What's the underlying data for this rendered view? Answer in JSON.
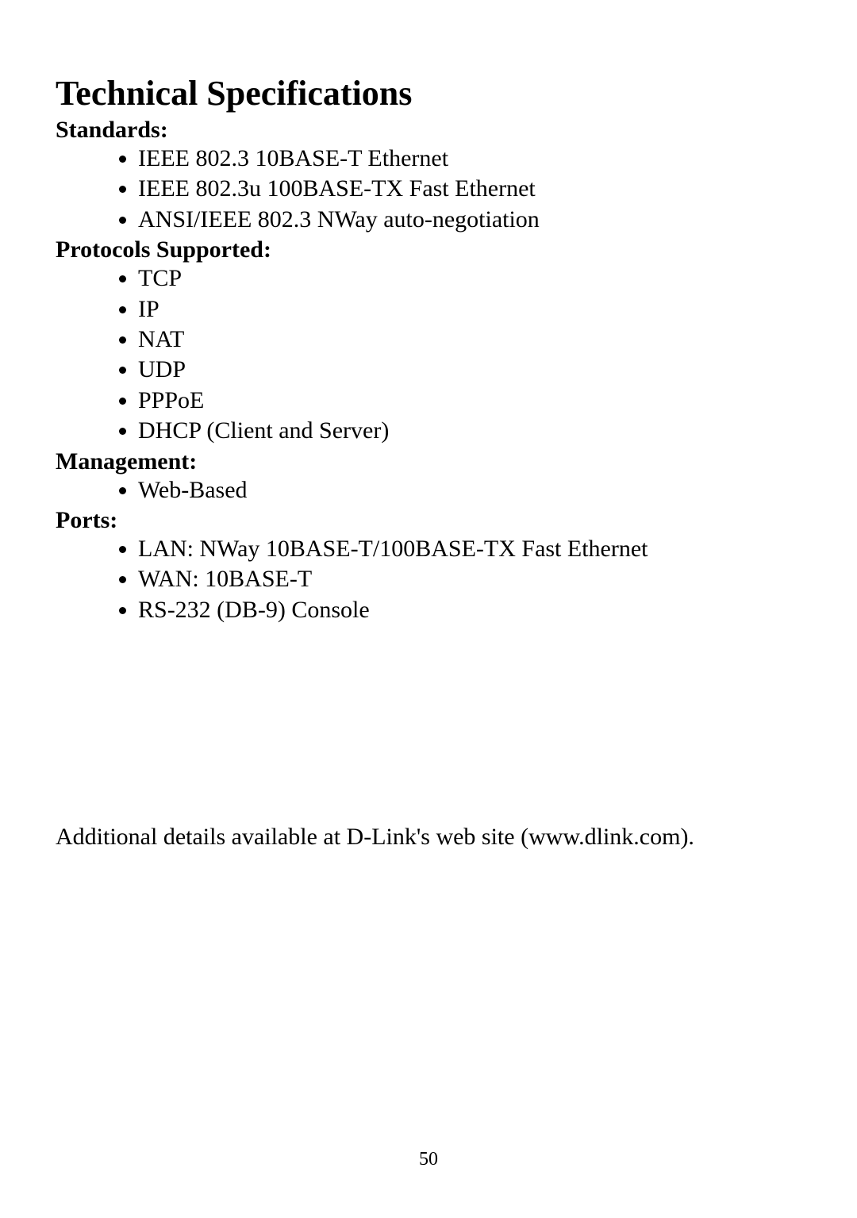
{
  "title": "Technical Specifications",
  "sections": {
    "standards": {
      "heading": "Standards:",
      "items": [
        "IEEE 802.3 10BASE-T Ethernet",
        "IEEE 802.3u 100BASE-TX Fast Ethernet",
        "ANSI/IEEE 802.3 NWay auto-negotiation"
      ]
    },
    "protocols": {
      "heading": "Protocols Supported:",
      "items": [
        "TCP",
        "IP",
        "NAT",
        "UDP",
        "PPPoE",
        "DHCP (Client and Server)"
      ]
    },
    "management": {
      "heading": "Management:",
      "items": [
        "Web-Based"
      ]
    },
    "ports": {
      "heading": "Ports:",
      "items": [
        "LAN: NWay 10BASE-T/100BASE-TX Fast Ethernet",
        "WAN: 10BASE-T",
        "RS-232 (DB-9) Console"
      ]
    }
  },
  "footer_text": "Additional details available at D-Link's web site (www.dlink.com).",
  "page_number": "50",
  "styling": {
    "background_color": "#ffffff",
    "text_color": "#000000",
    "font_family": "Times New Roman",
    "title_fontsize": 44,
    "heading_fontsize": 30,
    "body_fontsize": 30,
    "page_number_fontsize": 24
  }
}
